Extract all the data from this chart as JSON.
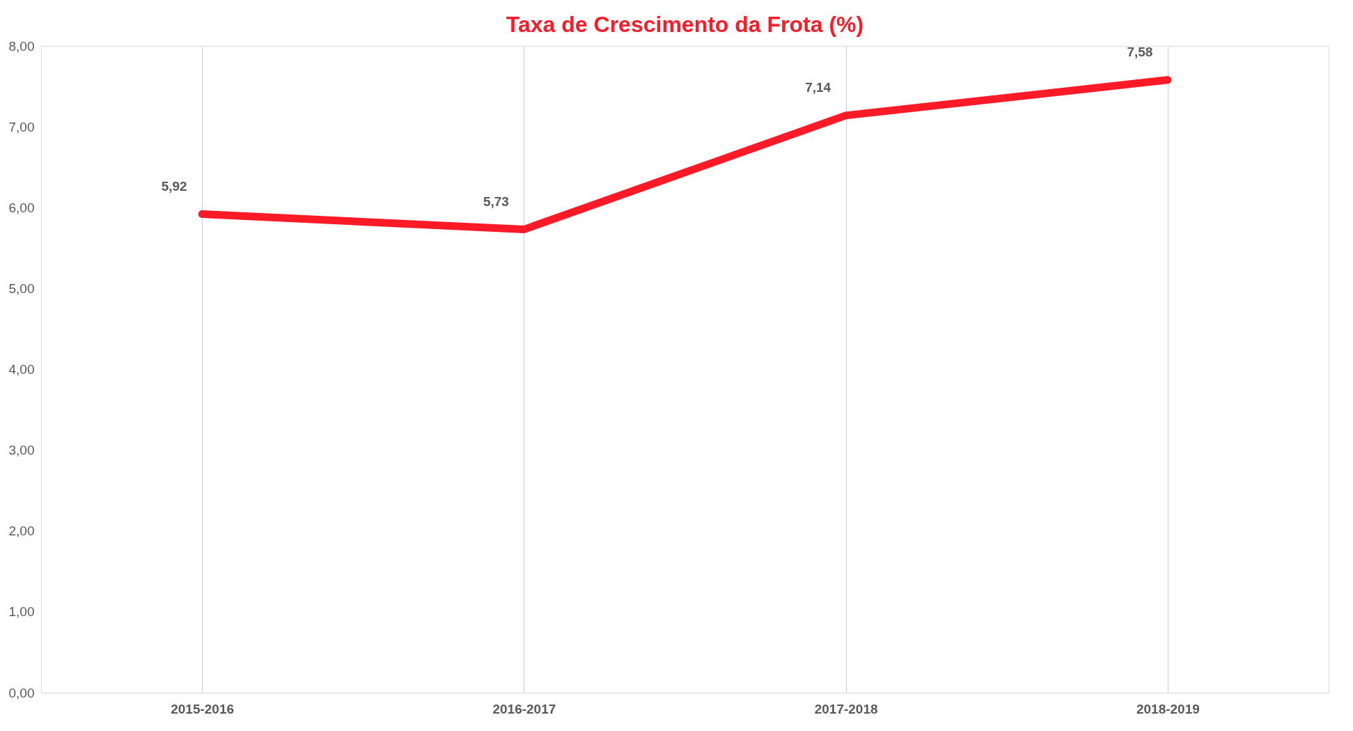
{
  "chart_data": {
    "type": "line",
    "title": "Taxa de Crescimento da Frota (%)",
    "categories": [
      "2015-2016",
      "2016-2017",
      "2017-2018",
      "2018-2019"
    ],
    "series": [
      {
        "color": "#ff1a27",
        "values": [
          5.92,
          5.73,
          7.14,
          7.58
        ],
        "value_labels": [
          "5,92",
          "5,73",
          "7,14",
          "7,58"
        ]
      }
    ],
    "ylim": [
      0,
      8
    ],
    "yticks": [
      {
        "value": 0,
        "label": "0,00"
      },
      {
        "value": 1,
        "label": "1,00"
      },
      {
        "value": 2,
        "label": "2,00"
      },
      {
        "value": 3,
        "label": "3,00"
      },
      {
        "value": 4,
        "label": "4,00"
      },
      {
        "value": 5,
        "label": "5,00"
      },
      {
        "value": 6,
        "label": "6,00"
      },
      {
        "value": 7,
        "label": "7,00"
      },
      {
        "value": 8,
        "label": "8,00"
      }
    ],
    "grid": "x",
    "marker": "none",
    "line_style": "solid"
  }
}
